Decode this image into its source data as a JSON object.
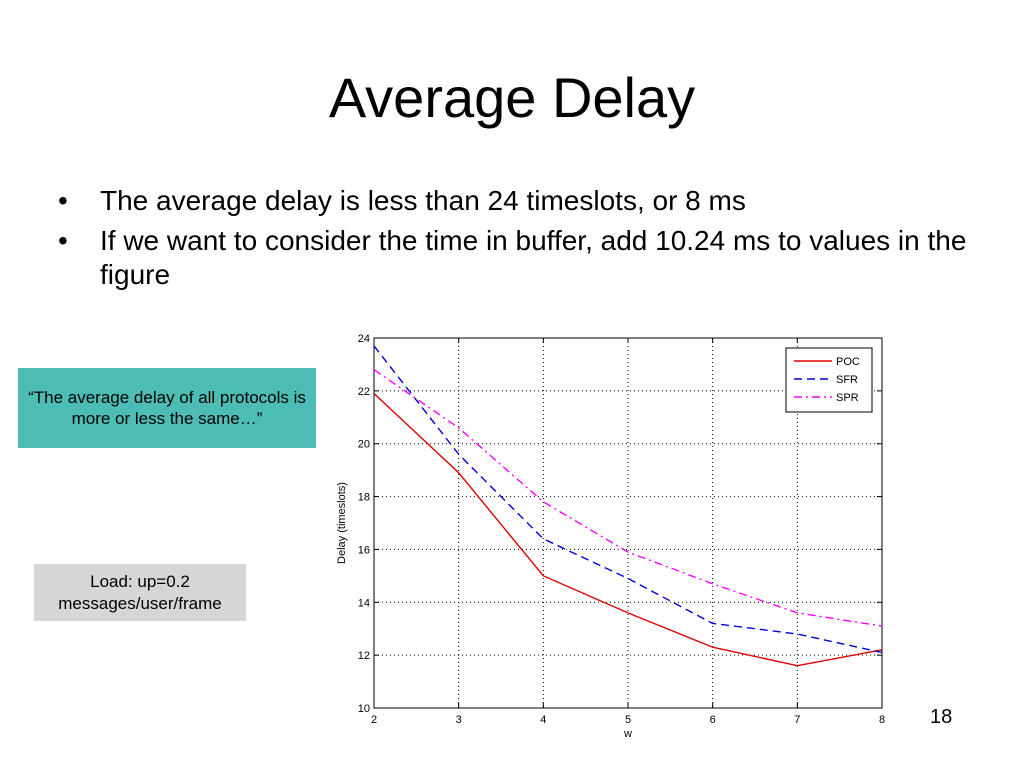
{
  "slide": {
    "title": "Average Delay",
    "bullets": [
      "The average delay is less than 24 timeslots, or 8 ms",
      "If we want to consider the time in buffer, add 10.24 ms to values in the figure"
    ],
    "bullet_symbol": "•",
    "callout_text": "“The average delay of all protocols is more or less the same…”",
    "load_text": "Load: up=0.2 messages/user/frame",
    "page_number": "18"
  },
  "colors": {
    "callout_bg": "#4dbcb5",
    "load_bg": "#d6d6d6"
  },
  "chart_data": {
    "type": "line",
    "xlabel": "w",
    "ylabel": "Delay (timeslots)",
    "x": [
      2,
      3,
      4,
      5,
      6,
      7,
      8
    ],
    "xlim": [
      2,
      8
    ],
    "ylim": [
      10,
      24
    ],
    "xticks": [
      2,
      3,
      4,
      5,
      6,
      7,
      8
    ],
    "yticks": [
      10,
      12,
      14,
      16,
      18,
      20,
      22,
      24
    ],
    "grid": true,
    "legend_position": "top-right",
    "series": [
      {
        "name": "POC",
        "values": [
          21.9,
          18.9,
          15.0,
          13.6,
          12.3,
          11.6,
          12.2
        ],
        "color": "#e00000",
        "style": "solid"
      },
      {
        "name": "SFR",
        "values": [
          23.7,
          19.6,
          16.4,
          14.9,
          13.2,
          12.8,
          12.1
        ],
        "color": "#0000e0",
        "style": "dashed"
      },
      {
        "name": "SPR",
        "values": [
          22.8,
          20.6,
          17.8,
          15.9,
          14.7,
          13.6,
          13.1
        ],
        "color": "#ff00ff",
        "style": "dashdot"
      }
    ]
  }
}
